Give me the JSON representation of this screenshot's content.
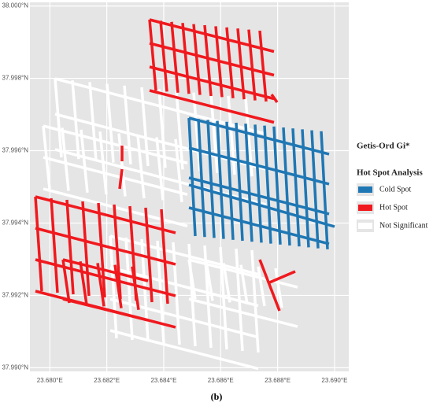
{
  "map": {
    "xlim": [
      23.6793,
      23.6905
    ],
    "ylim": [
      37.9899,
      38.0001
    ],
    "xticks": [
      {
        "value": 23.68,
        "label": "23.680°E"
      },
      {
        "value": 23.682,
        "label": "23.682°E"
      },
      {
        "value": 23.684,
        "label": "23.684°E"
      },
      {
        "value": 23.686,
        "label": "23.686°E"
      },
      {
        "value": 23.688,
        "label": "23.688°E"
      },
      {
        "value": 23.69,
        "label": "23.690°E"
      }
    ],
    "yticks": [
      {
        "value": 37.99,
        "label": "37.990°N"
      },
      {
        "value": 37.992,
        "label": "37.992°N"
      },
      {
        "value": 37.994,
        "label": "37.994°N"
      },
      {
        "value": 37.996,
        "label": "37.996°N"
      },
      {
        "value": 37.998,
        "label": "37.998°N"
      },
      {
        "value": 38,
        "label": "38.000°N"
      }
    ],
    "legend": {
      "title": "Getis-Ord Gi*",
      "subtitle": "Hot Spot Analysis",
      "items": [
        {
          "name": "Cold Spot",
          "color": "#1f77b4"
        },
        {
          "name": "Hot Spot",
          "color": "#f0191e"
        },
        {
          "name": "Not Significant",
          "color": "#ffffff"
        }
      ]
    },
    "caption": "(b)"
  }
}
